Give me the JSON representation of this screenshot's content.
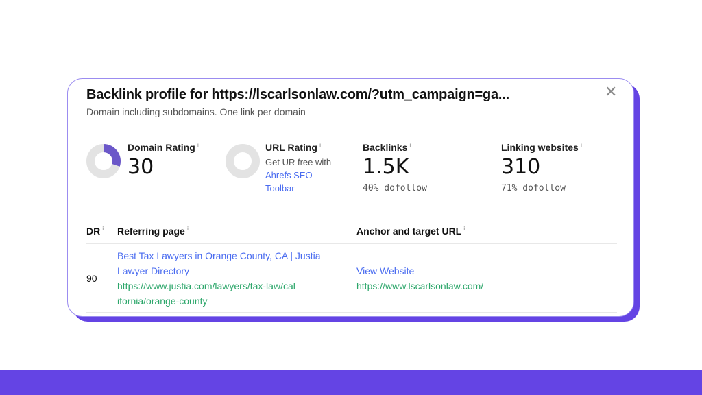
{
  "dialog": {
    "title": "Backlink profile for https://lscarlsonlaw.com/?utm_campaign=ga...",
    "subtitle": "Domain including subdomains. One link per domain",
    "close_icon": "close-icon"
  },
  "metrics": {
    "domain_rating": {
      "label": "Domain Rating",
      "value": "30",
      "percent": 30,
      "color": "#6b57c9"
    },
    "url_rating": {
      "label": "URL Rating",
      "text": "Get UR free with",
      "link": "Ahrefs SEO Toolbar"
    },
    "backlinks": {
      "label": "Backlinks",
      "value": "1.5K",
      "sub": "40% dofollow"
    },
    "linking_websites": {
      "label": "Linking websites",
      "value": "310",
      "sub": "71% dofollow"
    }
  },
  "table": {
    "headers": [
      "DR",
      "Referring page",
      "Anchor and target URL"
    ],
    "rows": [
      {
        "dr": "90",
        "page_title": "Best Tax Lawyers in Orange County, CA | Justia Lawyer Directory",
        "page_url": "https://www.justia.com/lawyers/tax-law/california/orange-county",
        "anchor": "View Website",
        "target_url": "https://www.lscarlsonlaw.com/"
      }
    ]
  },
  "colors": {
    "accent": "#6444e4",
    "link": "#4a6cf0",
    "url": "#2ca66a"
  }
}
